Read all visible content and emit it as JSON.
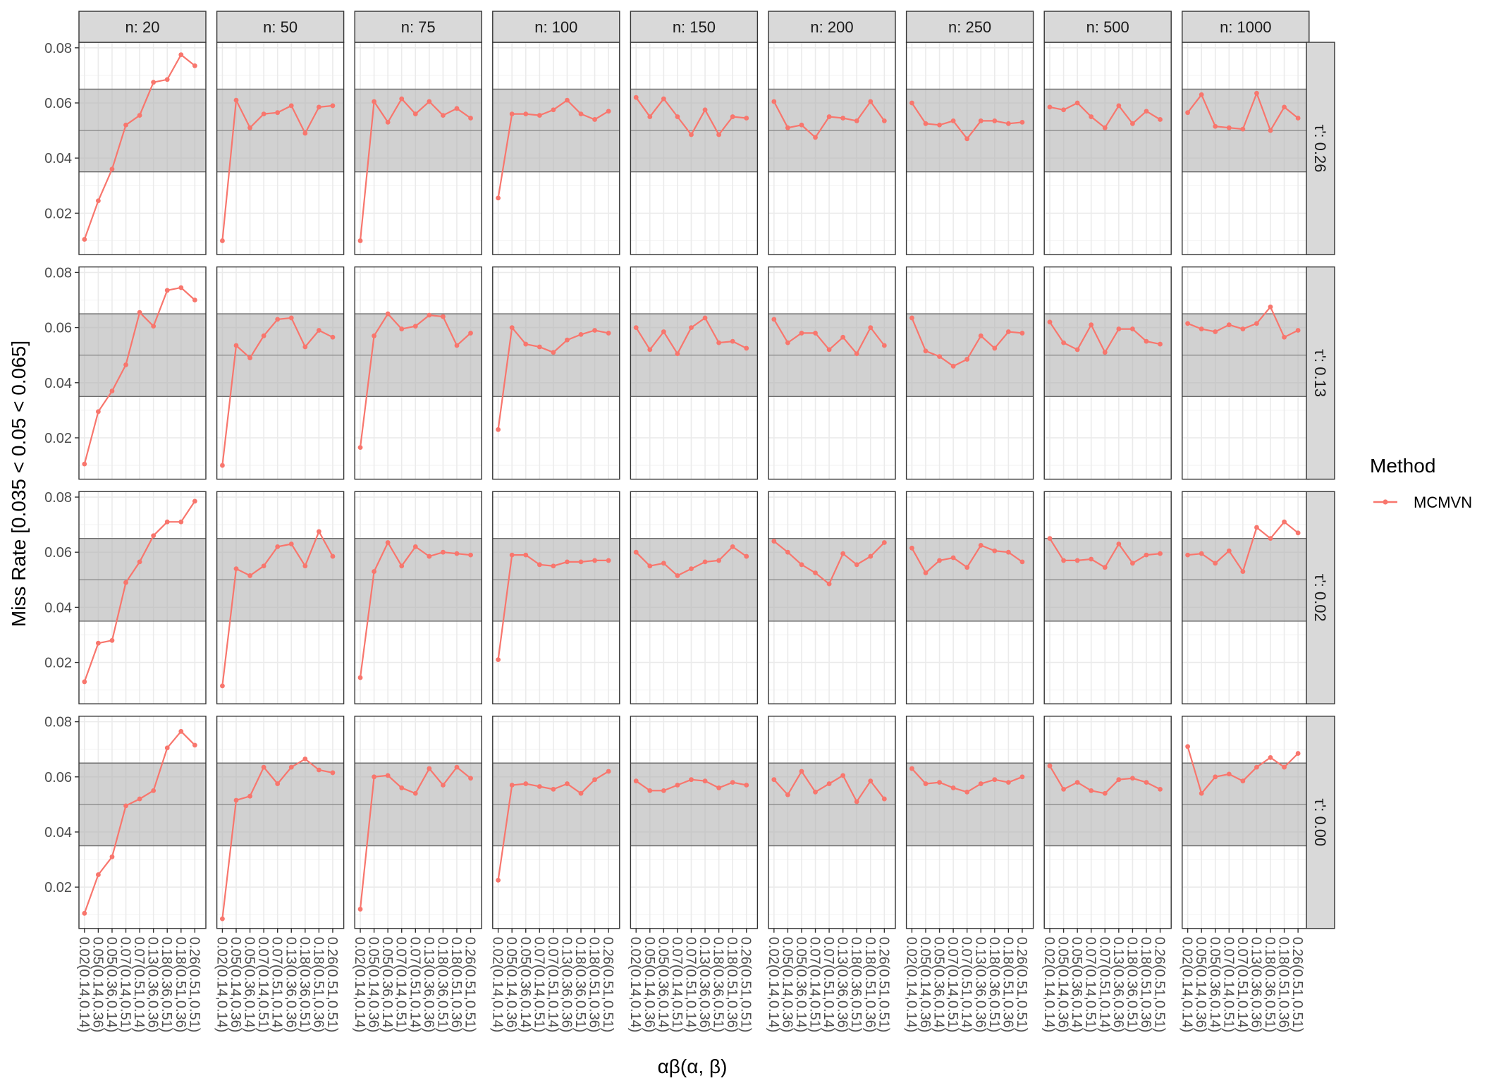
{
  "chart_data": {
    "type": "line",
    "xlabel": "αβ(α, β)",
    "ylabel": "Miss Rate [0.035 < 0.05 < 0.065]",
    "ylim": [
      0.005,
      0.082
    ],
    "yticks": [
      "0.02",
      "0.04",
      "0.06",
      "0.08"
    ],
    "band": {
      "low": 0.035,
      "mid": 0.05,
      "high": 0.065
    },
    "grid": true,
    "x": [
      "0.02(0.14,0.14)",
      "0.05(0.14,0.36)",
      "0.05(0.36,0.14)",
      "0.07(0.14,0.51)",
      "0.07(0.51,0.14)",
      "0.13(0.36,0.36)",
      "0.18(0.36,0.51)",
      "0.18(0.51,0.36)",
      "0.26(0.51,0.51)"
    ],
    "col_facets": [
      "n: 20",
      "n: 50",
      "n: 75",
      "n: 100",
      "n: 150",
      "n: 200",
      "n: 250",
      "n: 500",
      "n: 1000"
    ],
    "row_facets": [
      "τ': 0.26",
      "τ': 0.13",
      "τ': 0.02",
      "τ': 0.00"
    ],
    "legend": {
      "title": "Method",
      "position": "right",
      "entries": [
        {
          "name": "MCMVN",
          "color": "#F8766D"
        }
      ]
    },
    "series_color": "#F8766D",
    "panels": [
      [
        [
          0.0105,
          0.0245,
          0.036,
          0.052,
          0.0555,
          0.0675,
          0.0685,
          0.0775,
          0.0735
        ],
        [
          0.01,
          0.061,
          0.051,
          0.056,
          0.0565,
          0.059,
          0.049,
          0.0585,
          0.059
        ],
        [
          0.01,
          0.0605,
          0.053,
          0.0615,
          0.056,
          0.0605,
          0.0555,
          0.058,
          0.0545
        ],
        [
          0.0255,
          0.056,
          0.056,
          0.0555,
          0.0575,
          0.061,
          0.056,
          0.054,
          0.057
        ],
        [
          0.062,
          0.055,
          0.0615,
          0.055,
          0.0485,
          0.0575,
          0.0485,
          0.055,
          0.0545
        ],
        [
          0.0605,
          0.051,
          0.052,
          0.0475,
          0.055,
          0.0545,
          0.0535,
          0.0605,
          0.0535
        ],
        [
          0.06,
          0.0525,
          0.052,
          0.0535,
          0.047,
          0.0535,
          0.0535,
          0.0525,
          0.053
        ],
        [
          0.0585,
          0.0575,
          0.06,
          0.055,
          0.051,
          0.059,
          0.0525,
          0.057,
          0.054
        ],
        [
          0.0565,
          0.063,
          0.0515,
          0.051,
          0.0505,
          0.0635,
          0.05,
          0.0585,
          0.0545
        ]
      ],
      [
        [
          0.0105,
          0.0295,
          0.037,
          0.0465,
          0.0655,
          0.0605,
          0.0735,
          0.0745,
          0.07
        ],
        [
          0.01,
          0.0535,
          0.049,
          0.057,
          0.063,
          0.0635,
          0.053,
          0.059,
          0.0565
        ],
        [
          0.0165,
          0.057,
          0.065,
          0.0595,
          0.0605,
          0.0645,
          0.064,
          0.0535,
          0.058
        ],
        [
          0.023,
          0.06,
          0.054,
          0.053,
          0.051,
          0.0555,
          0.0575,
          0.059,
          0.058
        ],
        [
          0.06,
          0.052,
          0.0585,
          0.0505,
          0.06,
          0.0635,
          0.0545,
          0.055,
          0.0525
        ],
        [
          0.063,
          0.0545,
          0.058,
          0.058,
          0.052,
          0.0565,
          0.0505,
          0.06,
          0.0535
        ],
        [
          0.0635,
          0.0515,
          0.0495,
          0.046,
          0.0485,
          0.057,
          0.0525,
          0.0585,
          0.058
        ],
        [
          0.062,
          0.0545,
          0.052,
          0.061,
          0.051,
          0.0595,
          0.0595,
          0.055,
          0.054
        ],
        [
          0.0615,
          0.0595,
          0.0585,
          0.061,
          0.0595,
          0.0615,
          0.0675,
          0.0565,
          0.059
        ]
      ],
      [
        [
          0.013,
          0.027,
          0.028,
          0.049,
          0.0565,
          0.066,
          0.071,
          0.071,
          0.0785
        ],
        [
          0.0115,
          0.054,
          0.0515,
          0.055,
          0.062,
          0.063,
          0.055,
          0.0675,
          0.0585
        ],
        [
          0.0145,
          0.053,
          0.0635,
          0.055,
          0.062,
          0.0585,
          0.06,
          0.0595,
          0.059
        ],
        [
          0.021,
          0.059,
          0.059,
          0.0555,
          0.055,
          0.0565,
          0.0565,
          0.057,
          0.057
        ],
        [
          0.06,
          0.055,
          0.056,
          0.0515,
          0.054,
          0.0565,
          0.057,
          0.062,
          0.0585
        ],
        [
          0.064,
          0.06,
          0.0555,
          0.0525,
          0.0485,
          0.0595,
          0.0555,
          0.0585,
          0.0635
        ],
        [
          0.0615,
          0.0525,
          0.057,
          0.058,
          0.0545,
          0.0625,
          0.0605,
          0.06,
          0.0565
        ],
        [
          0.065,
          0.057,
          0.057,
          0.0575,
          0.0545,
          0.063,
          0.056,
          0.059,
          0.0595
        ],
        [
          0.059,
          0.0595,
          0.056,
          0.0605,
          0.053,
          0.069,
          0.065,
          0.071,
          0.067
        ]
      ],
      [
        [
          0.0105,
          0.0245,
          0.031,
          0.0495,
          0.052,
          0.055,
          0.0705,
          0.0765,
          0.0715
        ],
        [
          0.0085,
          0.0515,
          0.053,
          0.0635,
          0.0575,
          0.0635,
          0.0665,
          0.0625,
          0.0615
        ],
        [
          0.012,
          0.06,
          0.0605,
          0.056,
          0.054,
          0.063,
          0.057,
          0.0635,
          0.0595
        ],
        [
          0.0225,
          0.057,
          0.0575,
          0.0565,
          0.0555,
          0.0575,
          0.054,
          0.059,
          0.062
        ],
        [
          0.0585,
          0.055,
          0.055,
          0.057,
          0.059,
          0.0585,
          0.056,
          0.058,
          0.057
        ],
        [
          0.059,
          0.0535,
          0.062,
          0.0545,
          0.0575,
          0.0605,
          0.051,
          0.0585,
          0.052
        ],
        [
          0.063,
          0.0575,
          0.058,
          0.056,
          0.0545,
          0.0575,
          0.059,
          0.058,
          0.06
        ],
        [
          0.064,
          0.0555,
          0.058,
          0.055,
          0.054,
          0.059,
          0.0595,
          0.058,
          0.0555
        ],
        [
          0.071,
          0.054,
          0.06,
          0.061,
          0.0585,
          0.0635,
          0.067,
          0.0635,
          0.0685
        ]
      ]
    ]
  }
}
